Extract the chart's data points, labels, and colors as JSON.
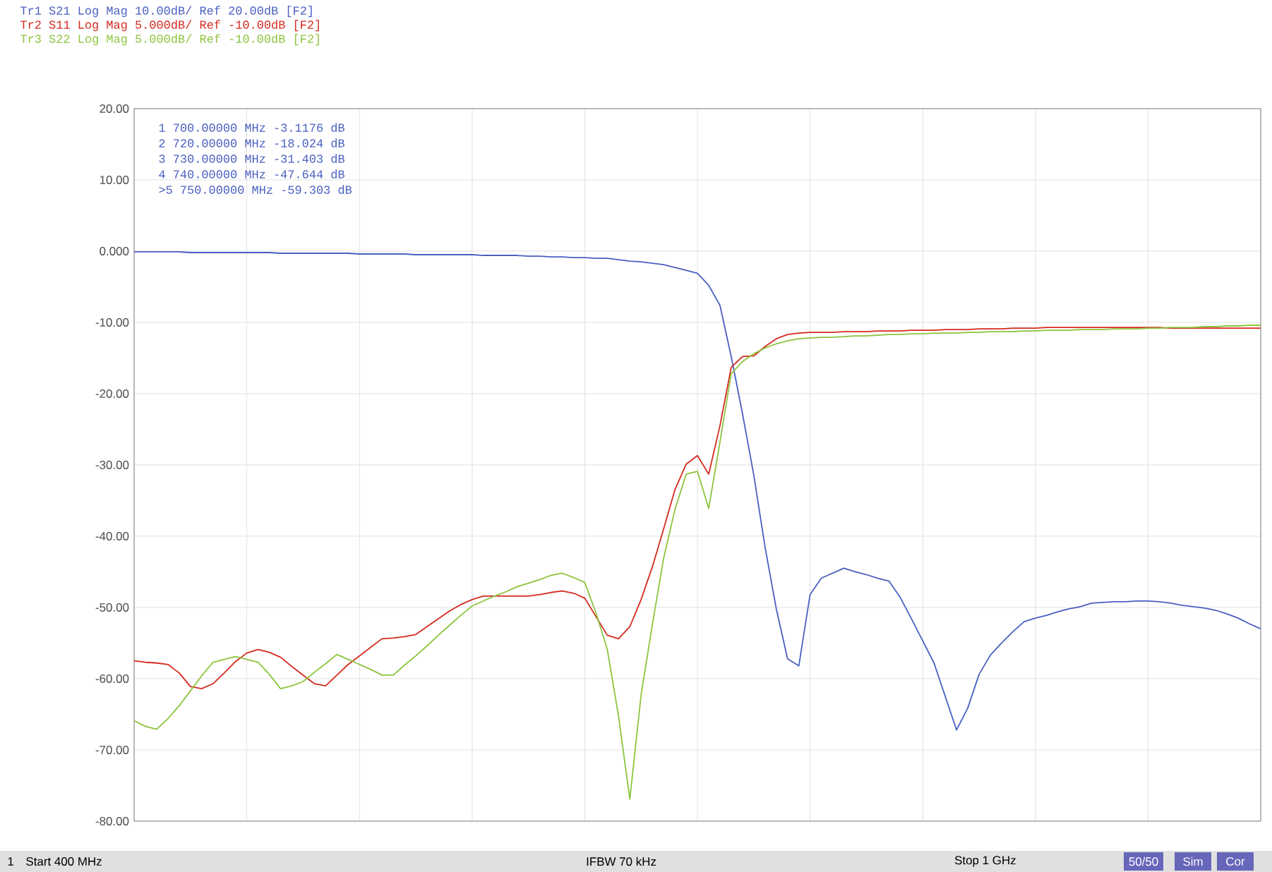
{
  "chart_data": {
    "type": "line",
    "ylim": [
      -80,
      20
    ],
    "categories": [
      null,
      null,
      null,
      null,
      null,
      null,
      null,
      null,
      null,
      null,
      null,
      null,
      null,
      null,
      null,
      null,
      null,
      null,
      null,
      null,
      null,
      null,
      null,
      null,
      null,
      null,
      null,
      null,
      null,
      null,
      null,
      null,
      null,
      null,
      null,
      null,
      null,
      null,
      null,
      null,
      null,
      null,
      null,
      null,
      null,
      null,
      null,
      null,
      null,
      null,
      null,
      null,
      null,
      null,
      null,
      null,
      null,
      null,
      null,
      null,
      null,
      null,
      null,
      null,
      null,
      null,
      null,
      null,
      null,
      null,
      null,
      null,
      null,
      null,
      null,
      null,
      null,
      null,
      null,
      null,
      null,
      null,
      null,
      null,
      null,
      null,
      null,
      null,
      null,
      null,
      null,
      null,
      null,
      null,
      null,
      null,
      null,
      null,
      null,
      null,
      null
    ],
    "yticks": [
      {
        "value": 20,
        "label": "20.00"
      },
      {
        "value": 10,
        "label": "10.00"
      },
      {
        "value": 0,
        "label": "0.000"
      },
      {
        "value": -10,
        "label": "-10.00"
      },
      {
        "value": -20,
        "label": "-20.00"
      },
      {
        "value": -30,
        "label": "-30.00"
      },
      {
        "value": -40,
        "label": "-40.00"
      },
      {
        "value": -50,
        "label": "-50.00"
      },
      {
        "value": -60,
        "label": "-60.00"
      },
      {
        "value": -70,
        "label": "-70.00"
      },
      {
        "value": -80,
        "label": "-80.00"
      }
    ],
    "tick_labels": "y",
    "grid": true,
    "marker": "none",
    "line_style": "solid",
    "series": [
      {
        "color": "#4a5fc1",
        "values": [
          -0.1,
          -0.1,
          -0.1,
          -0.1,
          -0.1,
          -0.2,
          -0.2,
          -0.2,
          -0.2,
          -0.2,
          -0.2,
          -0.2,
          -0.2,
          -0.3,
          -0.3,
          -0.3,
          -0.3,
          -0.3,
          -0.3,
          -0.3,
          -0.4,
          -0.4,
          -0.4,
          -0.4,
          -0.4,
          -0.5,
          -0.5,
          -0.5,
          -0.5,
          -0.5,
          -0.5,
          -0.6,
          -0.6,
          -0.6,
          -0.6,
          -0.7,
          -0.7,
          -0.8,
          -0.8,
          -0.9,
          -0.9,
          -1.0,
          -1.0,
          -1.2,
          -1.4,
          -1.5,
          -1.7,
          -1.9,
          -2.3,
          -2.7,
          -3.1,
          -4.8,
          -7.6,
          -14.8,
          -22.8,
          -31.4,
          -41.5,
          -50.2,
          -57.2,
          -58.2,
          -48.2,
          -45.9,
          -45.2,
          -44.5,
          -45,
          -45.4,
          -45.9,
          -46.3,
          -48.6,
          -51.6,
          -54.7,
          -57.8,
          -62.5,
          -67.2,
          -64.1,
          -59.4,
          -56.7,
          -55,
          -53.4,
          -52,
          -51.5,
          -51.1,
          -50.6,
          -50.2,
          -49.9,
          -49.4,
          -49.3,
          -49.2,
          -49.2,
          -49.1,
          -49.1,
          -49.2,
          -49.4,
          -49.7,
          -49.9,
          -50.1,
          -50.4,
          -50.9,
          -51.5,
          -52.3,
          -53
        ]
      },
      {
        "color": "#d42a1f",
        "values": [
          -57.5,
          -57.7,
          -57.8,
          -58,
          -59.2,
          -61.1,
          -61.4,
          -60.7,
          -59.2,
          -57.6,
          -56.4,
          -55.9,
          -56.3,
          -57,
          -58.3,
          -59.5,
          -60.7,
          -61,
          -59.5,
          -58,
          -56.8,
          -55.6,
          -54.4,
          -54.3,
          -54.1,
          -53.8,
          -52.7,
          -51.6,
          -50.5,
          -49.6,
          -48.9,
          -48.4,
          -48.4,
          -48.4,
          -48.4,
          -48.4,
          -48.2,
          -47.9,
          -47.7,
          -48,
          -48.7,
          -51.3,
          -53.9,
          -54.4,
          -52.7,
          -48.9,
          -44.3,
          -39,
          -33.5,
          -29.9,
          -28.7,
          -31.3,
          -24.5,
          -16.3,
          -14.8,
          -14.7,
          -13.4,
          -12.3,
          -11.7,
          -11.5,
          -11.4,
          -11.4,
          -11.4,
          -11.3,
          -11.3,
          -11.3,
          -11.2,
          -11.2,
          -11.2,
          -11.1,
          -11.1,
          -11.1,
          -11,
          -11,
          -11,
          -10.9,
          -10.9,
          -10.9,
          -10.8,
          -10.8,
          -10.8,
          -10.7,
          -10.7,
          -10.7,
          -10.7,
          -10.7,
          -10.7,
          -10.7,
          -10.7,
          -10.7,
          -10.7,
          -10.7,
          -10.8,
          -10.8,
          -10.8,
          -10.8,
          -10.8,
          -10.8,
          -10.8,
          -10.8,
          -10.8
        ]
      },
      {
        "color": "#8cc43c",
        "values": [
          -65.9,
          -66.7,
          -67.1,
          -65.6,
          -63.8,
          -61.7,
          -59.6,
          -57.7,
          -57.3,
          -56.9,
          -57.3,
          -57.7,
          -59.4,
          -61.4,
          -61,
          -60.4,
          -59.1,
          -57.9,
          -56.6,
          -57.3,
          -58,
          -58.7,
          -59.5,
          -59.5,
          -58.1,
          -56.8,
          -55.4,
          -53.9,
          -52.5,
          -51.1,
          -49.8,
          -49.1,
          -48.4,
          -47.8,
          -47.1,
          -46.6,
          -46.1,
          -45.5,
          -45.2,
          -45.8,
          -46.5,
          -50.8,
          -55.9,
          -65.3,
          -76.9,
          -62.3,
          -52.4,
          -43.1,
          -36.3,
          -31.3,
          -30.9,
          -36.1,
          -26.8,
          -17.2,
          -15.5,
          -14.4,
          -13.6,
          -13,
          -12.6,
          -12.3,
          -12.2,
          -12.1,
          -12.1,
          -12,
          -11.9,
          -11.9,
          -11.8,
          -11.7,
          -11.7,
          -11.6,
          -11.6,
          -11.5,
          -11.5,
          -11.5,
          -11.4,
          -11.4,
          -11.3,
          -11.3,
          -11.3,
          -11.2,
          -11.2,
          -11.1,
          -11.1,
          -11.1,
          -11,
          -11,
          -11,
          -10.9,
          -10.9,
          -10.9,
          -10.8,
          -10.8,
          -10.7,
          -10.7,
          -10.7,
          -10.6,
          -10.6,
          -10.5,
          -10.5,
          -10.4,
          -10.4
        ]
      }
    ],
    "annotations": [
      "Tr1 S21 Log Mag 10.00dB/ Ref 20.00dB [F2]",
      "Tr2 S11 Log Mag 5.000dB/ Ref -10.00dB [F2]",
      "Tr3 S22 Log Mag 5.000dB/ Ref -10.00dB [F2]",
      "1   700.00000 MHz -3.1176 dB",
      "2   720.00000 MHz -18.024 dB",
      "3   730.00000 MHz -31.403 dB",
      "4   740.00000 MHz -47.644 dB",
      ">5  750.00000 MHz -59.303 dB",
      "1",
      "Start 400 MHz",
      "IFBW 70 kHz",
      "Stop 1 GHz",
      "50/50",
      "Sim",
      "Cor"
    ]
  }
}
